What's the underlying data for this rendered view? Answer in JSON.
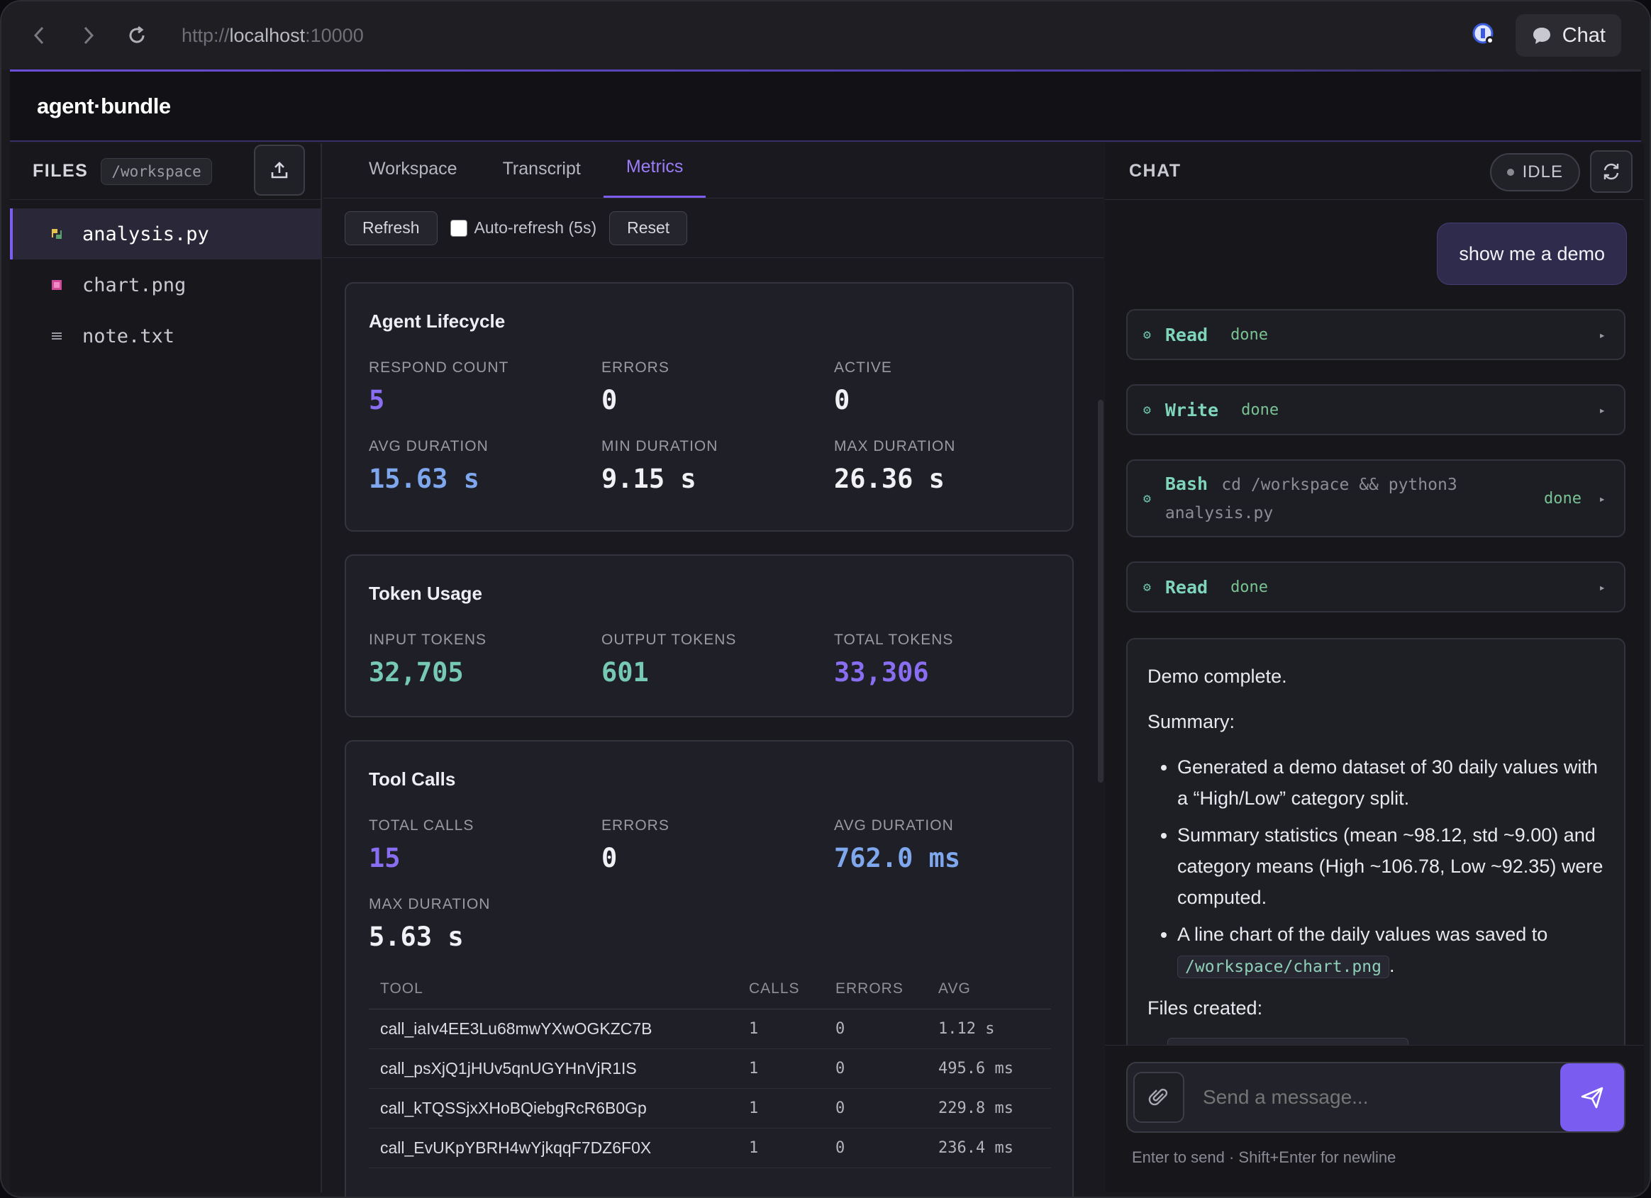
{
  "browser": {
    "url_scheme": "http://",
    "url_host": "localhost",
    "url_port": ":10000",
    "chat_label": "Chat"
  },
  "app": {
    "logo": "agent·bundle"
  },
  "files": {
    "title": "FILES",
    "path": "/workspace",
    "items": [
      {
        "name": "analysis.py",
        "icon": "python-file-icon",
        "active": true
      },
      {
        "name": "chart.png",
        "icon": "image-file-icon",
        "active": false
      },
      {
        "name": "note.txt",
        "icon": "text-file-icon",
        "active": false
      }
    ]
  },
  "tabs": [
    "Workspace",
    "Transcript",
    "Metrics"
  ],
  "active_tab": "Metrics",
  "toolbar": {
    "refresh": "Refresh",
    "auto_refresh": "Auto-refresh (5s)",
    "auto_refresh_checked": false,
    "reset": "Reset"
  },
  "lifecycle": {
    "title": "Agent Lifecycle",
    "metrics": [
      {
        "label": "RESPOND COUNT",
        "value": "5"
      },
      {
        "label": "ERRORS",
        "value": "0"
      },
      {
        "label": "ACTIVE",
        "value": "0"
      },
      {
        "label": "AVG DURATION",
        "value": "15.63 s"
      },
      {
        "label": "MIN DURATION",
        "value": "9.15 s"
      },
      {
        "label": "MAX DURATION",
        "value": "26.36 s"
      }
    ]
  },
  "tokens": {
    "title": "Token Usage",
    "metrics": [
      {
        "label": "INPUT TOKENS",
        "value": "32,705"
      },
      {
        "label": "OUTPUT TOKENS",
        "value": "601"
      },
      {
        "label": "TOTAL TOKENS",
        "value": "33,306"
      }
    ]
  },
  "tool_calls": {
    "title": "Tool Calls",
    "metrics": [
      {
        "label": "TOTAL CALLS",
        "value": "15"
      },
      {
        "label": "ERRORS",
        "value": "0"
      },
      {
        "label": "AVG DURATION",
        "value": "762.0 ms"
      },
      {
        "label": "MAX DURATION",
        "value": "5.63 s"
      }
    ],
    "columns": [
      "TOOL",
      "CALLS",
      "ERRORS",
      "AVG"
    ],
    "rows": [
      [
        "call_iaIv4EE3Lu68mwYXwOGKZC7B",
        "1",
        "0",
        "1.12 s"
      ],
      [
        "call_psXjQ1jHUv5qnUGYHnVjR1IS",
        "1",
        "0",
        "495.6 ms"
      ],
      [
        "call_kTQSSjxXHoBQiebgRcR6B0Gp",
        "1",
        "0",
        "229.8 ms"
      ],
      [
        "call_EvUKpYBRH4wYjkqqF7DZ6F0X",
        "1",
        "0",
        "236.4 ms"
      ]
    ]
  },
  "chat": {
    "title": "CHAT",
    "status": "IDLE",
    "user_message": "show me a demo",
    "tools": [
      {
        "name": "Read",
        "status": "done"
      },
      {
        "name": "Write",
        "status": "done"
      },
      {
        "name": "Bash",
        "command_line1": "cd /workspace && python3",
        "command_line2": "analysis.py",
        "status": "done"
      },
      {
        "name": "Read",
        "status": "done"
      }
    ],
    "assistant": {
      "line1": "Demo complete.",
      "line2": "Summary:",
      "bullets": [
        "Generated a demo dataset of 30 daily values with a “High/Low” category split.",
        "Summary statistics (mean ~98.12, std ~9.00) and category means (High ~106.78, Low ~92.35) were computed.",
        "A line chart of the daily values was saved to"
      ],
      "chart_path": "/workspace/chart.png",
      "bullet3_suffix": ".",
      "line3": "Files created:"
    },
    "input_placeholder": "Send a message...",
    "hint": "Enter to send · Shift+Enter for newline"
  }
}
